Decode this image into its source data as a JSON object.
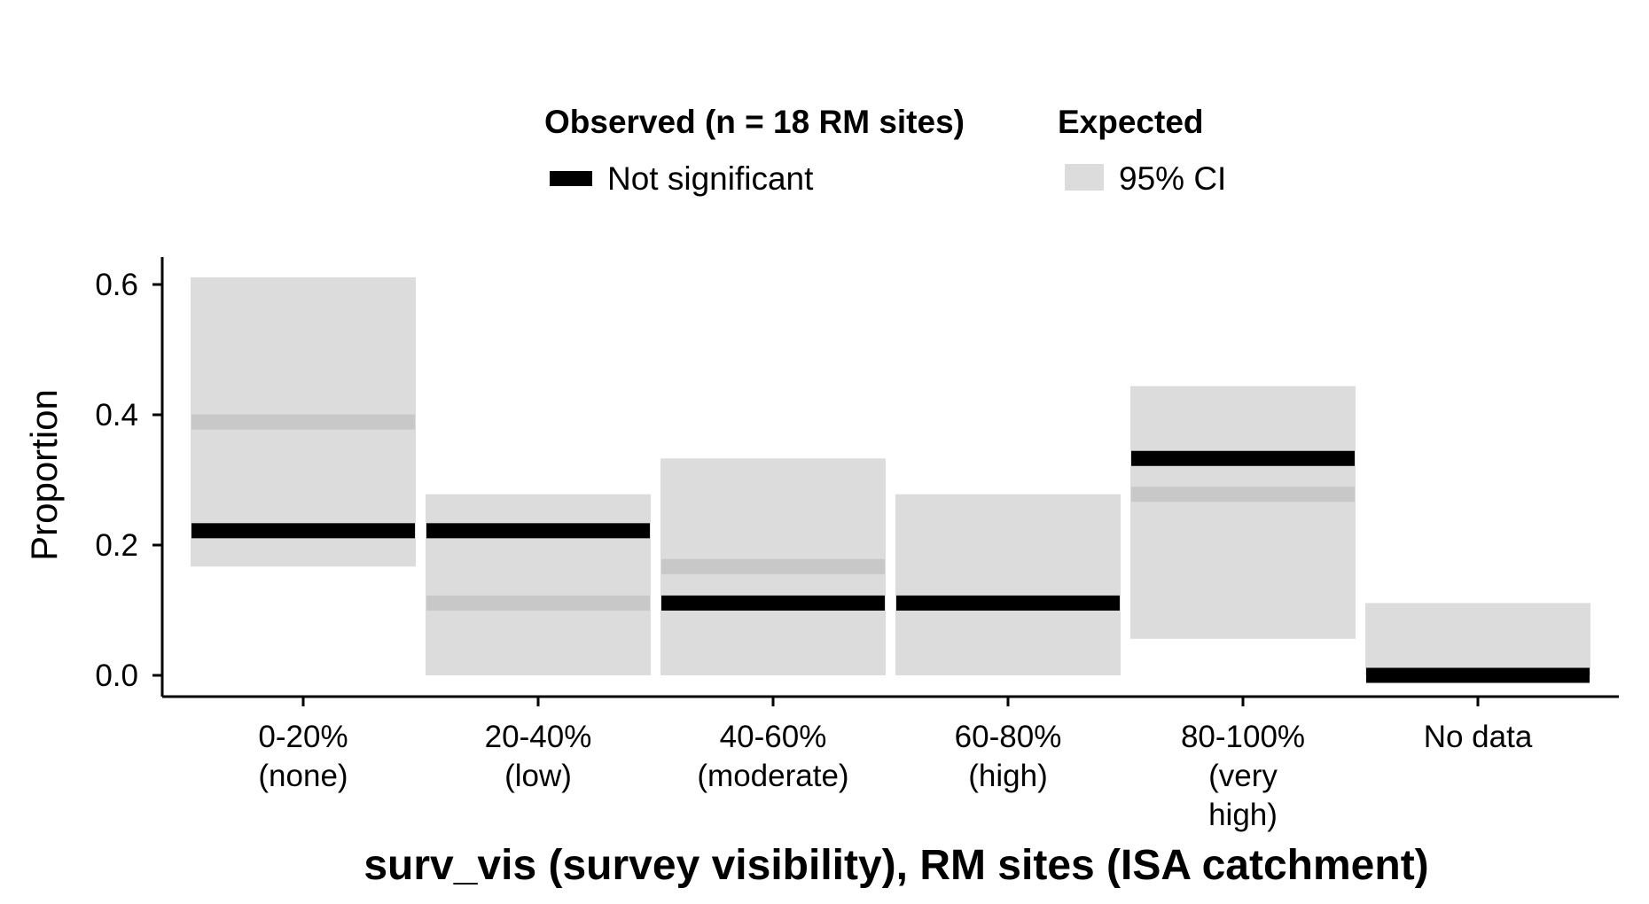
{
  "legend": {
    "observed_title": "Observed (n = 18 RM sites)",
    "observed_item": "Not significant",
    "expected_title": "Expected",
    "expected_item": "95% CI"
  },
  "colors": {
    "observed": "#000000",
    "ci_band": "#dcdcdc",
    "expected_mean": "#c8c8c8"
  },
  "chart_data": {
    "type": "bar",
    "xlabel": "surv_vis (survey visibility), RM sites (ISA catchment)",
    "ylabel": "Proportion",
    "ylim": [
      0,
      0.6
    ],
    "y_ticks": [
      0.0,
      0.2,
      0.4,
      0.6
    ],
    "y_tick_labels": [
      "0.0",
      "0.2",
      "0.4",
      "0.6"
    ],
    "categories": [
      [
        "0-20%",
        "(none)"
      ],
      [
        "20-40%",
        "(low)"
      ],
      [
        "40-60%",
        "(moderate)"
      ],
      [
        "60-80%",
        "(high)"
      ],
      [
        "80-100%",
        "(very",
        "high)"
      ],
      [
        "No data"
      ]
    ],
    "series": [
      {
        "name": "Not significant",
        "values": [
          0.222,
          0.222,
          0.111,
          0.111,
          0.333,
          0.0
        ]
      }
    ],
    "expected_mean": [
      0.389,
      0.111,
      0.167,
      null,
      0.278,
      null
    ],
    "ci_low": [
      0.167,
      0.0,
      0.0,
      0.0,
      0.056,
      0.0
    ],
    "ci_high": [
      0.611,
      0.278,
      0.333,
      0.278,
      0.444,
      0.111
    ],
    "legend_position": "top",
    "grid": false
  }
}
